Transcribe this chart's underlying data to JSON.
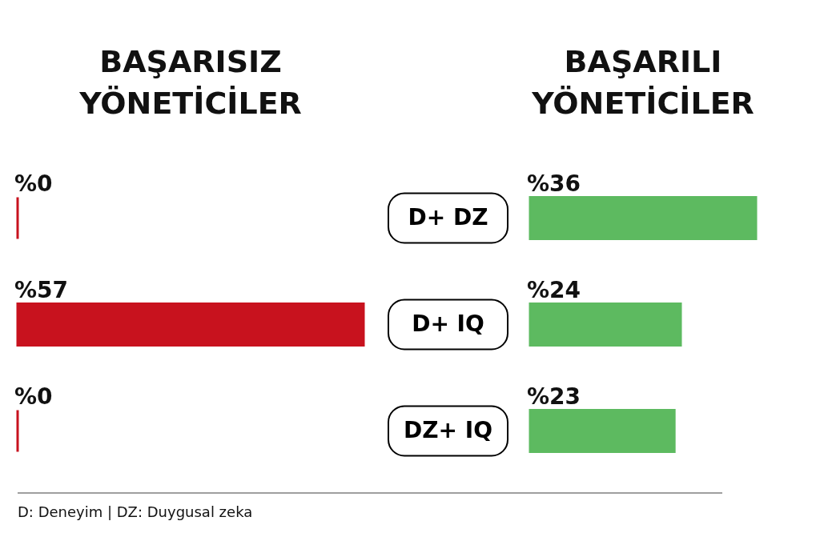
{
  "chart_data": [
    {
      "type": "bar",
      "orientation": "horizontal",
      "title": "BAŞARISIZ YÖNETİCİLER",
      "categories": [
        "D+ DZ",
        "D+ IQ",
        "DZ+ IQ"
      ],
      "values": [
        0,
        57,
        0
      ],
      "value_labels": [
        "%0",
        "%57",
        "%0"
      ],
      "color": "#c8121e",
      "tick_labels": false,
      "annotations": [
        "D: Deneyim | DZ: Duygusal zeka"
      ]
    },
    {
      "type": "bar",
      "orientation": "horizontal",
      "title": "BAŞARILI YÖNETİCİLER",
      "categories": [
        "D+ DZ",
        "D+ IQ",
        "DZ+ IQ"
      ],
      "values": [
        36,
        24,
        23
      ],
      "value_labels": [
        "%36",
        "%24",
        "%23"
      ],
      "color": "#5dba60",
      "tick_labels": "y"
    }
  ]
}
